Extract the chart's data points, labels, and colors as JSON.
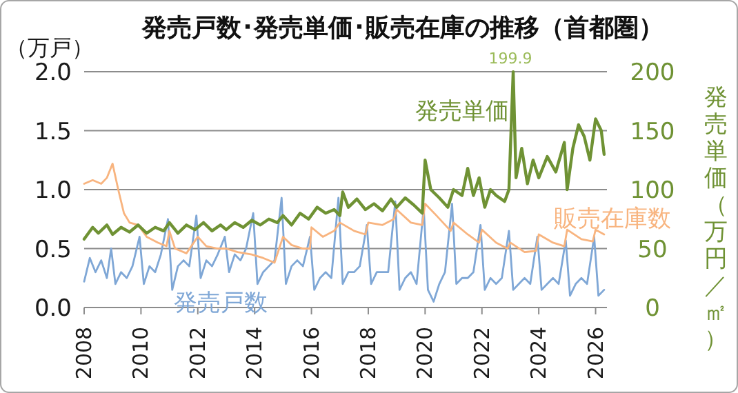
{
  "chart_data": {
    "type": "line",
    "title": "発売戸数･発売単価･販売在庫の推移（首都圏）",
    "ylabel": "（万戸）",
    "y2label": "発売単価（万円／㎡）",
    "xlim": [
      2008,
      2026.4
    ],
    "xticks": [
      2008,
      2010,
      2012,
      2014,
      2016,
      2018,
      2020,
      2022,
      2024,
      2026
    ],
    "ylim": [
      0,
      2
    ],
    "yticks": [
      {
        "value": 0,
        "label": "0.0"
      },
      {
        "value": 0.5,
        "label": "0.5"
      },
      {
        "value": 1,
        "label": "1.0"
      },
      {
        "value": 1.5,
        "label": "1.5"
      },
      {
        "value": 2,
        "label": "2.0"
      }
    ],
    "y2lim": [
      0,
      200
    ],
    "y2ticks": [
      0,
      50,
      100,
      150,
      200
    ],
    "grid": "y",
    "line_style": "solid",
    "marker": "none",
    "annotations": [
      "199.9"
    ],
    "series": [
      {
        "name": "発売戸数",
        "color": "#7fa7d6",
        "x": [
          2008.0,
          2008.2,
          2008.4,
          2008.6,
          2008.8,
          2008.95,
          2009.1,
          2009.3,
          2009.5,
          2009.7,
          2009.95,
          2010.1,
          2010.3,
          2010.5,
          2010.7,
          2010.95,
          2011.1,
          2011.3,
          2011.5,
          2011.7,
          2011.95,
          2012.1,
          2012.3,
          2012.5,
          2012.7,
          2012.95,
          2013.1,
          2013.3,
          2013.5,
          2013.7,
          2013.95,
          2014.1,
          2014.3,
          2014.5,
          2014.7,
          2014.95,
          2015.1,
          2015.3,
          2015.5,
          2015.7,
          2015.95,
          2016.1,
          2016.3,
          2016.5,
          2016.7,
          2016.95,
          2017.1,
          2017.3,
          2017.5,
          2017.7,
          2017.95,
          2018.1,
          2018.3,
          2018.5,
          2018.7,
          2018.95,
          2019.1,
          2019.3,
          2019.5,
          2019.7,
          2019.95,
          2020.1,
          2020.3,
          2020.5,
          2020.7,
          2020.95,
          2021.1,
          2021.3,
          2021.5,
          2021.7,
          2021.95,
          2022.1,
          2022.3,
          2022.5,
          2022.7,
          2022.95,
          2023.1,
          2023.3,
          2023.5,
          2023.7,
          2023.95,
          2024.1,
          2024.3,
          2024.5,
          2024.7,
          2024.95,
          2025.1,
          2025.3,
          2025.5,
          2025.7,
          2025.95,
          2026.1,
          2026.3
        ],
        "values": [
          0.22,
          0.42,
          0.3,
          0.4,
          0.25,
          0.5,
          0.2,
          0.3,
          0.25,
          0.35,
          0.6,
          0.2,
          0.35,
          0.3,
          0.45,
          0.75,
          0.15,
          0.35,
          0.4,
          0.35,
          0.78,
          0.25,
          0.4,
          0.35,
          0.45,
          0.6,
          0.3,
          0.45,
          0.4,
          0.5,
          0.8,
          0.2,
          0.3,
          0.35,
          0.4,
          0.93,
          0.2,
          0.35,
          0.4,
          0.35,
          0.6,
          0.15,
          0.25,
          0.3,
          0.25,
          0.93,
          0.2,
          0.3,
          0.3,
          0.35,
          0.7,
          0.2,
          0.3,
          0.3,
          0.3,
          0.9,
          0.15,
          0.25,
          0.3,
          0.2,
          0.85,
          0.15,
          0.05,
          0.2,
          0.3,
          0.88,
          0.2,
          0.25,
          0.25,
          0.3,
          0.7,
          0.15,
          0.25,
          0.2,
          0.25,
          0.65,
          0.15,
          0.2,
          0.25,
          0.2,
          0.6,
          0.15,
          0.2,
          0.25,
          0.2,
          0.57,
          0.1,
          0.2,
          0.25,
          0.2,
          0.6,
          0.1,
          0.15
        ]
      },
      {
        "name": "販売在庫数",
        "color": "#f8b47f",
        "x": [
          2008.0,
          2008.3,
          2008.6,
          2008.8,
          2009.0,
          2009.2,
          2009.4,
          2009.6,
          2009.9,
          2010.2,
          2010.6,
          2010.9,
          2011.0,
          2011.2,
          2011.6,
          2012.0,
          2012.3,
          2012.7,
          2013.0,
          2013.4,
          2013.9,
          2014.3,
          2014.7,
          2015.0,
          2015.3,
          2015.7,
          2015.95,
          2016.0,
          2016.4,
          2016.8,
          2017.0,
          2017.5,
          2017.9,
          2018.0,
          2018.5,
          2018.9,
          2019.0,
          2019.5,
          2019.9,
          2020.0,
          2020.4,
          2020.9,
          2021.0,
          2021.5,
          2021.9,
          2022.0,
          2022.5,
          2022.9,
          2023.0,
          2023.5,
          2023.9,
          2024.0,
          2024.5,
          2024.9,
          2025.0,
          2025.5,
          2025.9,
          2026.0,
          2026.3
        ],
        "values": [
          1.05,
          1.08,
          1.05,
          1.1,
          1.22,
          1.0,
          0.8,
          0.72,
          0.7,
          0.6,
          0.55,
          0.52,
          0.65,
          0.5,
          0.46,
          0.6,
          0.52,
          0.5,
          0.5,
          0.47,
          0.45,
          0.42,
          0.38,
          0.6,
          0.53,
          0.5,
          0.5,
          0.68,
          0.6,
          0.65,
          0.72,
          0.65,
          0.62,
          0.72,
          0.7,
          0.75,
          0.83,
          0.72,
          0.7,
          0.88,
          0.78,
          0.65,
          0.72,
          0.62,
          0.55,
          0.66,
          0.55,
          0.5,
          0.55,
          0.47,
          0.48,
          0.62,
          0.55,
          0.52,
          0.66,
          0.58,
          0.56,
          0.66,
          0.62
        ]
      },
      {
        "name": "発売単価",
        "color": "#6f9234",
        "axis": "y2",
        "x": [
          2008.0,
          2008.3,
          2008.5,
          2008.8,
          2009.0,
          2009.3,
          2009.6,
          2009.9,
          2010.2,
          2010.5,
          2010.8,
          2011.0,
          2011.3,
          2011.6,
          2011.9,
          2012.2,
          2012.5,
          2012.8,
          2013.0,
          2013.3,
          2013.6,
          2013.9,
          2014.2,
          2014.5,
          2014.8,
          2015.0,
          2015.3,
          2015.6,
          2015.9,
          2016.2,
          2016.5,
          2016.8,
          2017.0,
          2017.1,
          2017.3,
          2017.6,
          2017.9,
          2018.2,
          2018.5,
          2018.8,
          2019.0,
          2019.3,
          2019.6,
          2019.9,
          2020.0,
          2020.2,
          2020.5,
          2020.8,
          2021.0,
          2021.3,
          2021.5,
          2021.7,
          2021.9,
          2022.1,
          2022.3,
          2022.5,
          2022.8,
          2022.95,
          2023.1,
          2023.2,
          2023.4,
          2023.6,
          2023.8,
          2024.0,
          2024.3,
          2024.6,
          2024.9,
          2025.0,
          2025.2,
          2025.4,
          2025.6,
          2025.8,
          2026.0,
          2026.2,
          2026.3
        ],
        "values": [
          58,
          68,
          63,
          70,
          62,
          68,
          64,
          70,
          63,
          68,
          65,
          72,
          63,
          70,
          66,
          72,
          65,
          70,
          66,
          72,
          68,
          74,
          70,
          75,
          72,
          78,
          70,
          80,
          75,
          85,
          80,
          83,
          78,
          98,
          85,
          92,
          83,
          88,
          82,
          92,
          85,
          93,
          87,
          80,
          125,
          100,
          93,
          85,
          100,
          95,
          118,
          95,
          110,
          85,
          100,
          95,
          90,
          100,
          199.9,
          110,
          135,
          105,
          125,
          110,
          128,
          115,
          140,
          100,
          135,
          155,
          145,
          125,
          160,
          150,
          130
        ]
      }
    ]
  }
}
